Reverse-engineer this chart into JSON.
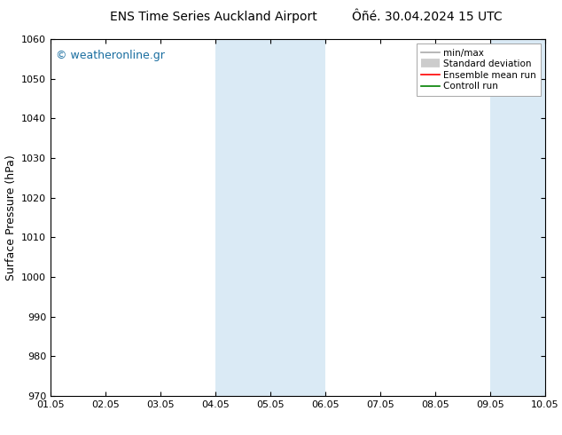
{
  "title_left": "ENS Time Series Auckland Airport",
  "title_right": "Ôñé. 30.04.2024 15 UTC",
  "ylabel": "Surface Pressure (hPa)",
  "ylim": [
    970,
    1060
  ],
  "yticks": [
    970,
    980,
    990,
    1000,
    1010,
    1020,
    1030,
    1040,
    1050,
    1060
  ],
  "xtick_labels": [
    "01.05",
    "02.05",
    "03.05",
    "04.05",
    "05.05",
    "06.05",
    "07.05",
    "08.05",
    "09.05",
    "10.05"
  ],
  "n_xticks": 10,
  "shaded_regions": [
    {
      "xstart": 3,
      "xend": 5,
      "color": "#daeaf5"
    },
    {
      "xstart": 8,
      "xend": 9,
      "color": "#daeaf5"
    }
  ],
  "watermark": "© weatheronline.gr",
  "watermark_color": "#1a6ea0",
  "legend_items": [
    {
      "label": "min/max",
      "color": "#aaaaaa",
      "lw": 1.2,
      "style": "solid"
    },
    {
      "label": "Standard deviation",
      "color": "#cccccc",
      "lw": 7,
      "style": "solid"
    },
    {
      "label": "Ensemble mean run",
      "color": "red",
      "lw": 1.2,
      "style": "solid"
    },
    {
      "label": "Controll run",
      "color": "green",
      "lw": 1.2,
      "style": "solid"
    }
  ],
  "bg_color": "#ffffff",
  "plot_bg_color": "#ffffff",
  "border_color": "#000000",
  "title_fontsize": 10,
  "label_fontsize": 9,
  "tick_fontsize": 8,
  "watermark_fontsize": 9,
  "legend_fontsize": 7.5
}
